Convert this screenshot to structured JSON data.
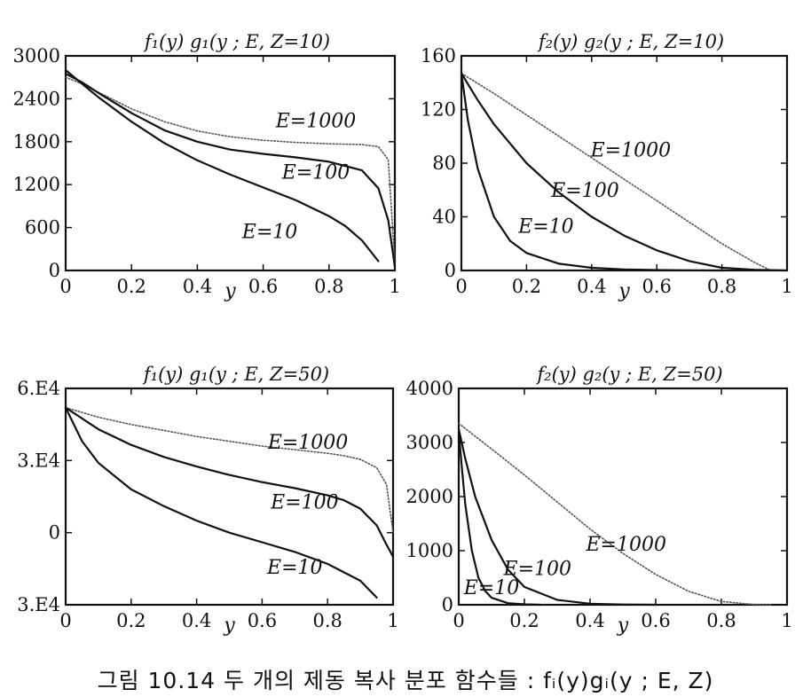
{
  "caption": "그림 10.14 두 개의 제동 복사 분포 함수들 : fᵢ(y)gᵢ(y ; E, Z)",
  "colors": {
    "ink": "#111111",
    "dotted": "#555555"
  },
  "chart_data": [
    {
      "type": "line",
      "title": "f₁(y) g₁(y ; E, Z=10)",
      "xlabel": "y",
      "ylabel": "",
      "xlim": [
        0,
        1
      ],
      "ylim": [
        0,
        3000
      ],
      "xticks": [
        "0",
        "0.2",
        "0.4",
        "0.6",
        "0.8",
        "1"
      ],
      "yticks": [
        "0",
        "600",
        "1200",
        "1800",
        "2400",
        "3000"
      ],
      "grid": false,
      "series": [
        {
          "name": "E=1000",
          "style": "dotted",
          "x": [
            0,
            0.05,
            0.1,
            0.2,
            0.3,
            0.4,
            0.5,
            0.6,
            0.7,
            0.8,
            0.9,
            0.95,
            0.98,
            1.0
          ],
          "y": [
            2700,
            2610,
            2490,
            2260,
            2080,
            1950,
            1870,
            1820,
            1790,
            1770,
            1760,
            1730,
            1550,
            100
          ]
        },
        {
          "name": "E=100",
          "style": "solid",
          "x": [
            0,
            0.05,
            0.1,
            0.2,
            0.3,
            0.4,
            0.5,
            0.6,
            0.7,
            0.8,
            0.9,
            0.95,
            0.98,
            1.0
          ],
          "y": [
            2750,
            2630,
            2480,
            2200,
            1960,
            1800,
            1690,
            1630,
            1580,
            1520,
            1400,
            1150,
            700,
            50
          ]
        },
        {
          "name": "E=10",
          "style": "solid",
          "x": [
            0,
            0.05,
            0.1,
            0.2,
            0.3,
            0.4,
            0.5,
            0.6,
            0.7,
            0.8,
            0.85,
            0.9,
            0.95
          ],
          "y": [
            2800,
            2610,
            2420,
            2080,
            1780,
            1540,
            1340,
            1160,
            980,
            760,
            620,
            420,
            130
          ]
        }
      ],
      "annotations": [
        "E=1000",
        "E=100",
        "E=10"
      ]
    },
    {
      "type": "line",
      "title": "f₂(y) g₂(y ; E, Z=10)",
      "xlabel": "y",
      "ylabel": "",
      "xlim": [
        0,
        1
      ],
      "ylim": [
        0,
        160
      ],
      "xticks": [
        "0",
        "0.2",
        "0.4",
        "0.6",
        "0.8",
        "1"
      ],
      "yticks": [
        "0",
        "40",
        "80",
        "120",
        "160"
      ],
      "grid": false,
      "series": [
        {
          "name": "E=1000",
          "style": "dotted",
          "x": [
            0,
            0.1,
            0.2,
            0.3,
            0.4,
            0.5,
            0.6,
            0.7,
            0.8,
            0.9,
            0.95
          ],
          "y": [
            147,
            132,
            116,
            100,
            84,
            68,
            52,
            36,
            20,
            6,
            0
          ]
        },
        {
          "name": "E=100",
          "style": "solid",
          "x": [
            0,
            0.05,
            0.1,
            0.2,
            0.3,
            0.4,
            0.5,
            0.6,
            0.7,
            0.8,
            0.9,
            1.0
          ],
          "y": [
            147,
            127,
            109,
            80,
            58,
            40,
            26,
            15,
            7,
            2,
            0.5,
            0
          ]
        },
        {
          "name": "E=10",
          "style": "solid",
          "x": [
            0,
            0.02,
            0.05,
            0.1,
            0.15,
            0.2,
            0.3,
            0.4,
            0.5,
            0.6,
            0.7,
            0.8
          ],
          "y": [
            147,
            112,
            76,
            40,
            22,
            13,
            5,
            2,
            0.8,
            0.3,
            0.1,
            0
          ]
        }
      ],
      "annotations": [
        "E=1000",
        "E=100",
        "E=10"
      ]
    },
    {
      "type": "line",
      "title": "f₁(y) g₁(y ; E, Z=50)",
      "xlabel": "y",
      "ylabel": "",
      "xlim": [
        0,
        1
      ],
      "ylim": [
        -30000,
        60000
      ],
      "xticks": [
        "0",
        "0.2",
        "0.4",
        "0.6",
        "0.8",
        "1"
      ],
      "yticks": [
        "3.E4",
        "0",
        "3.E4",
        "6.E4"
      ],
      "grid": false,
      "series": [
        {
          "name": "E=1000",
          "style": "dotted",
          "x": [
            0,
            0.1,
            0.2,
            0.3,
            0.4,
            0.5,
            0.6,
            0.7,
            0.8,
            0.85,
            0.9,
            0.95,
            0.98,
            1.0
          ],
          "y": [
            52000,
            48000,
            45000,
            42500,
            40000,
            38000,
            36000,
            34500,
            33000,
            32000,
            30500,
            27000,
            20000,
            0
          ]
        },
        {
          "name": "E=100",
          "style": "solid",
          "x": [
            0,
            0.1,
            0.2,
            0.3,
            0.4,
            0.5,
            0.6,
            0.7,
            0.8,
            0.85,
            0.9,
            0.95,
            0.98,
            1.0
          ],
          "y": [
            52000,
            43000,
            36500,
            31500,
            27500,
            24000,
            21000,
            18500,
            15500,
            13500,
            10000,
            3000,
            -5000,
            -10000
          ]
        },
        {
          "name": "E=10",
          "style": "solid",
          "x": [
            0,
            0.05,
            0.1,
            0.2,
            0.3,
            0.4,
            0.5,
            0.6,
            0.7,
            0.8,
            0.9,
            0.95
          ],
          "y": [
            52000,
            38000,
            29000,
            18000,
            11000,
            5000,
            0,
            -4000,
            -8000,
            -13000,
            -20000,
            -27000
          ]
        }
      ],
      "annotations": [
        "E=1000",
        "E=100",
        "E=10"
      ]
    },
    {
      "type": "line",
      "title": "f₂(y) g₂(y ; E, Z=50)",
      "xlabel": "y",
      "ylabel": "",
      "xlim": [
        0,
        1
      ],
      "ylim": [
        0,
        4000
      ],
      "xticks": [
        "0",
        "0.2",
        "0.4",
        "0.6",
        "0.8",
        "1"
      ],
      "yticks": [
        "0",
        "1000",
        "2000",
        "3000",
        "4000"
      ],
      "grid": false,
      "series": [
        {
          "name": "E=1000",
          "style": "dotted",
          "x": [
            0,
            0.1,
            0.2,
            0.3,
            0.4,
            0.5,
            0.6,
            0.7,
            0.8,
            0.9,
            0.95
          ],
          "y": [
            3350,
            2880,
            2400,
            1900,
            1400,
            950,
            560,
            250,
            60,
            5,
            0
          ]
        },
        {
          "name": "E=100",
          "style": "solid",
          "x": [
            0,
            0.02,
            0.05,
            0.1,
            0.15,
            0.2,
            0.3,
            0.4,
            0.5,
            0.6
          ],
          "y": [
            3250,
            2700,
            2000,
            1200,
            650,
            330,
            90,
            20,
            5,
            0
          ]
        },
        {
          "name": "E=10",
          "style": "solid",
          "x": [
            0,
            0.01,
            0.02,
            0.04,
            0.06,
            0.08,
            0.1,
            0.15,
            0.2,
            0.25
          ],
          "y": [
            3200,
            2500,
            1850,
            1000,
            500,
            260,
            130,
            30,
            8,
            0
          ]
        }
      ],
      "annotations": [
        "E=1000",
        "E=100",
        "E=10"
      ]
    }
  ]
}
